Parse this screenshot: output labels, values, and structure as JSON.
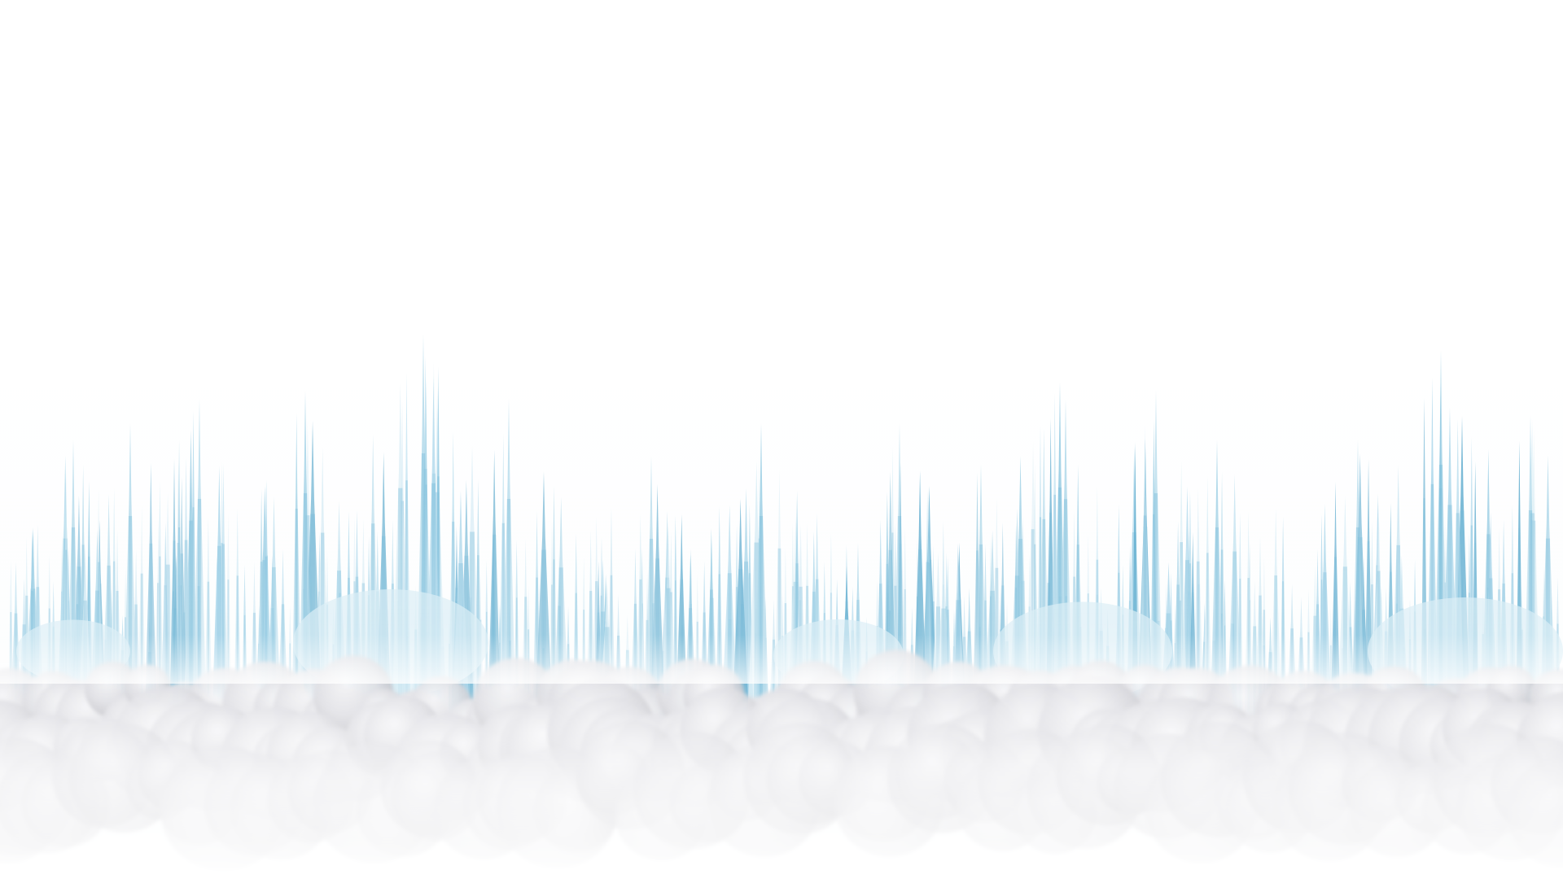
{
  "scene": {
    "description_visible_text": "",
    "palette": {
      "sky": "#ffffff",
      "tower_light": "#d7ecf5",
      "tower_mid": "#a9d6ea",
      "tower_dark": "#6fb6d6",
      "tower_edge": "#5aa9cd",
      "cloud_light": "#f2f2f4",
      "cloud_mid": "#d9d9de",
      "cloud_dark": "#a9a9b0",
      "fog": "#ffffff"
    },
    "layers": [
      "sky-background",
      "spire-city-skyline",
      "cloud-bank",
      "ground-fog"
    ]
  }
}
